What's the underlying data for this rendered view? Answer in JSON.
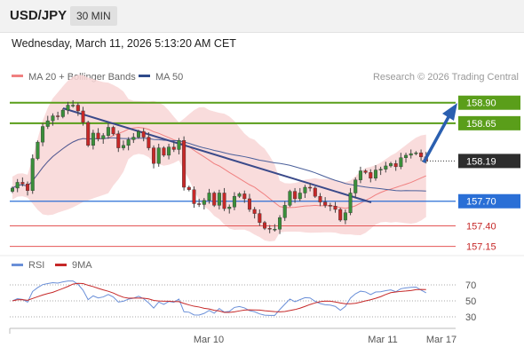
{
  "header": {
    "symbol": "USD/JPY",
    "timeframe": "30 MIN"
  },
  "timestamp": "Wednesday, March 11, 2026 5:13:20 AM CET",
  "legend": {
    "ma20": "MA 20 + Bollinger Bands",
    "ma50": "MA 50"
  },
  "copyright": "Research © 2026 Trading Central",
  "colors": {
    "up": "#3a8f3a",
    "down": "#c62828",
    "pivot": "#2a6fd6",
    "target": "#5a9e1a",
    "support": "#e45555",
    "trend": "#3a4a8a",
    "bands": "#f8d6d6",
    "ma20": "#f08080",
    "ma50": "#4a5f9a",
    "rsi": "#6a8fd8",
    "rsi9": "#c62828"
  },
  "chart_data": [
    {
      "type": "candlestick",
      "ylim": [
        157.07,
        159.07
      ],
      "levels": [
        {
          "label": "158.90",
          "value": 158.9,
          "kind": "resistance"
        },
        {
          "label": "158.65",
          "value": 158.65,
          "kind": "resistance"
        },
        {
          "label": "158.19",
          "value": 158.19,
          "kind": "last"
        },
        {
          "label": "157.70",
          "value": 157.7,
          "kind": "pivot"
        },
        {
          "label": "157.40",
          "value": 157.4,
          "kind": "support"
        },
        {
          "label": "157.15",
          "value": 157.15,
          "kind": "support"
        }
      ],
      "x_labels": [
        "Mar 10",
        "Mar 11",
        "Mar 17"
      ],
      "closes": [
        157.86,
        157.93,
        157.91,
        157.83,
        158.22,
        158.42,
        158.61,
        158.68,
        158.74,
        158.73,
        158.81,
        158.87,
        158.87,
        158.8,
        158.66,
        158.38,
        158.53,
        158.46,
        158.5,
        158.6,
        158.52,
        158.35,
        158.38,
        158.45,
        158.48,
        158.55,
        158.48,
        158.35,
        158.16,
        158.35,
        158.26,
        158.36,
        158.33,
        158.44,
        157.87,
        157.84,
        157.67,
        157.66,
        157.71,
        157.8,
        157.65,
        157.8,
        157.61,
        157.63,
        157.76,
        157.79,
        157.73,
        157.6,
        157.55,
        157.44,
        157.37,
        157.36,
        157.36,
        157.5,
        157.65,
        157.82,
        157.73,
        157.8,
        157.87,
        157.86,
        157.76,
        157.69,
        157.65,
        157.64,
        157.6,
        157.47,
        157.56,
        157.8,
        157.96,
        158.07,
        158.05,
        157.98,
        158.08,
        158.09,
        158.13,
        158.16,
        158.12,
        158.23,
        158.26,
        158.28,
        158.29,
        158.24,
        158.19
      ]
    },
    {
      "type": "line",
      "title": "RSI",
      "series": [
        {
          "name": "RSI"
        },
        {
          "name": "9MA"
        }
      ],
      "yticks": [
        "70",
        "50",
        "30"
      ]
    }
  ]
}
